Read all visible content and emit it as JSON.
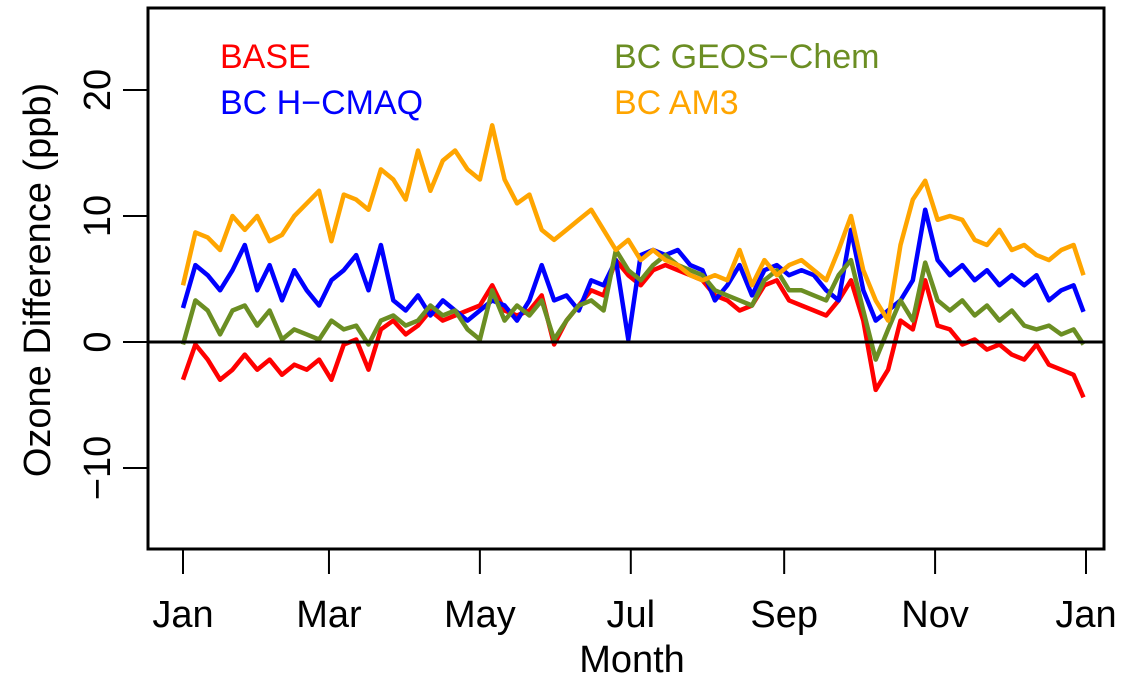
{
  "chart_data": {
    "type": "line",
    "title": "",
    "xlabel": "Month",
    "ylabel": "Ozone Difference (ppb)",
    "ylim": [
      -16.4,
      26.5
    ],
    "xlim_days": [
      -14,
      372
    ],
    "x_tick_labels": [
      "Jan",
      "Mar",
      "May",
      "Jul",
      "Sep",
      "Nov",
      "Jan"
    ],
    "x_tick_days": [
      0,
      59,
      120,
      181,
      243,
      304,
      365
    ],
    "y_ticks": [
      -10,
      0,
      10,
      20
    ],
    "y_tick_labels": [
      "−10",
      "0",
      "10",
      "20"
    ],
    "reference_line": 0,
    "grid": false,
    "legend_placement": "top",
    "x": [
      0,
      5,
      10,
      15,
      20,
      25,
      30,
      35,
      40,
      45,
      50,
      55,
      60,
      65,
      70,
      75,
      80,
      85,
      90,
      95,
      100,
      105,
      110,
      115,
      120,
      125,
      130,
      135,
      140,
      145,
      150,
      155,
      160,
      165,
      170,
      175,
      180,
      185,
      190,
      195,
      200,
      205,
      210,
      215,
      220,
      225,
      230,
      235,
      240,
      245,
      250,
      255,
      260,
      265,
      270,
      275,
      280,
      285,
      290,
      295,
      300,
      305,
      310,
      315,
      320,
      325,
      330,
      335,
      340,
      345,
      350,
      355,
      360,
      364
    ],
    "series": [
      {
        "name": "BASE",
        "color": "#ff0000",
        "values": [
          -3,
          -0.2,
          -1.4,
          -3,
          -2.2,
          -1,
          -2.2,
          -1.4,
          -2.6,
          -1.8,
          -2.2,
          -1.4,
          -3,
          -0.2,
          0.2,
          -2.2,
          1,
          1.7,
          0.6,
          1.3,
          2.5,
          1.7,
          2.1,
          2.5,
          2.9,
          4.5,
          2.5,
          2.1,
          2.5,
          3.7,
          -0.2,
          1.7,
          2.9,
          4.1,
          3.7,
          6.5,
          5.3,
          4.5,
          5.7,
          6.1,
          5.7,
          5.3,
          4.9,
          3.7,
          3.3,
          2.5,
          2.9,
          4.5,
          4.9,
          3.3,
          2.9,
          2.5,
          2.1,
          3.3,
          4.9,
          1.7,
          -3.8,
          -2.2,
          1.7,
          1,
          4.9,
          1.3,
          1,
          -0.2,
          0.2,
          -0.6,
          -0.2,
          -1,
          -1.4,
          -0.2,
          -1.8,
          -2.2,
          -2.6,
          -4.4
        ]
      },
      {
        "name": "BC H−CMAQ",
        "color": "#0000ff",
        "values": [
          2.7,
          6.1,
          5.3,
          4.1,
          5.7,
          7.7,
          4.1,
          6.1,
          3.3,
          5.7,
          4.1,
          2.9,
          4.9,
          5.7,
          6.9,
          4.1,
          7.7,
          3.3,
          2.5,
          3.7,
          2.1,
          3.3,
          2.5,
          1.7,
          2.5,
          3.3,
          2.9,
          1.7,
          3.3,
          6.1,
          3.3,
          3.7,
          2.5,
          4.9,
          4.5,
          6.5,
          0.2,
          6.9,
          7.3,
          6.9,
          7.3,
          6.1,
          5.7,
          3.3,
          4.5,
          6.1,
          3.7,
          5.7,
          6.1,
          5.3,
          5.7,
          5.3,
          4.1,
          3.3,
          8.9,
          4.1,
          1.7,
          2.5,
          3.3,
          4.9,
          10.5,
          6.5,
          5.3,
          6.1,
          4.9,
          5.7,
          4.5,
          5.3,
          4.5,
          5.3,
          3.3,
          4.1,
          4.5,
          2.4
        ]
      },
      {
        "name": "BC GEOS−Chem",
        "color": "#6b8e23",
        "values": [
          -0.2,
          3.3,
          2.5,
          0.6,
          2.5,
          2.9,
          1.3,
          2.5,
          0.2,
          1,
          0.6,
          0.2,
          1.7,
          1,
          1.3,
          -0.2,
          1.7,
          2.1,
          1.3,
          1.7,
          2.9,
          2.1,
          2.5,
          1,
          0.2,
          4.1,
          1.7,
          2.9,
          2.1,
          3.3,
          0.2,
          1.7,
          2.9,
          3.3,
          2.5,
          7.3,
          5.7,
          4.9,
          6.1,
          6.9,
          6.1,
          5.7,
          5.3,
          4.1,
          3.7,
          3.3,
          2.9,
          4.9,
          5.7,
          4.1,
          4.1,
          3.7,
          3.3,
          5.3,
          6.5,
          2.5,
          -1.4,
          1,
          3.3,
          1.7,
          6.3,
          3.3,
          2.5,
          3.3,
          2.1,
          2.9,
          1.7,
          2.5,
          1.3,
          1,
          1.3,
          0.6,
          1,
          -0.2
        ]
      },
      {
        "name": "BC AM3",
        "color": "#ffa500",
        "values": [
          4.5,
          8.7,
          8.3,
          7.3,
          10,
          8.9,
          10,
          8,
          8.5,
          10,
          11,
          12,
          8,
          11.7,
          11.3,
          10.5,
          13.7,
          12.9,
          11.3,
          15.2,
          12,
          14.4,
          15.2,
          13.7,
          12.9,
          17.2,
          12.9,
          11,
          11.7,
          8.9,
          8.1,
          8.9,
          9.7,
          10.5,
          8.9,
          7.3,
          8.1,
          6.5,
          7.3,
          6.5,
          6.1,
          5.3,
          4.9,
          5.3,
          4.9,
          7.3,
          4.5,
          6.5,
          5.3,
          6.1,
          6.5,
          5.7,
          4.9,
          7.3,
          10,
          5.7,
          3.3,
          1.7,
          7.7,
          11.3,
          12.8,
          9.7,
          10,
          9.7,
          8.1,
          7.7,
          8.9,
          7.3,
          7.7,
          6.9,
          6.5,
          7.3,
          7.7,
          5.3
        ]
      }
    ]
  }
}
